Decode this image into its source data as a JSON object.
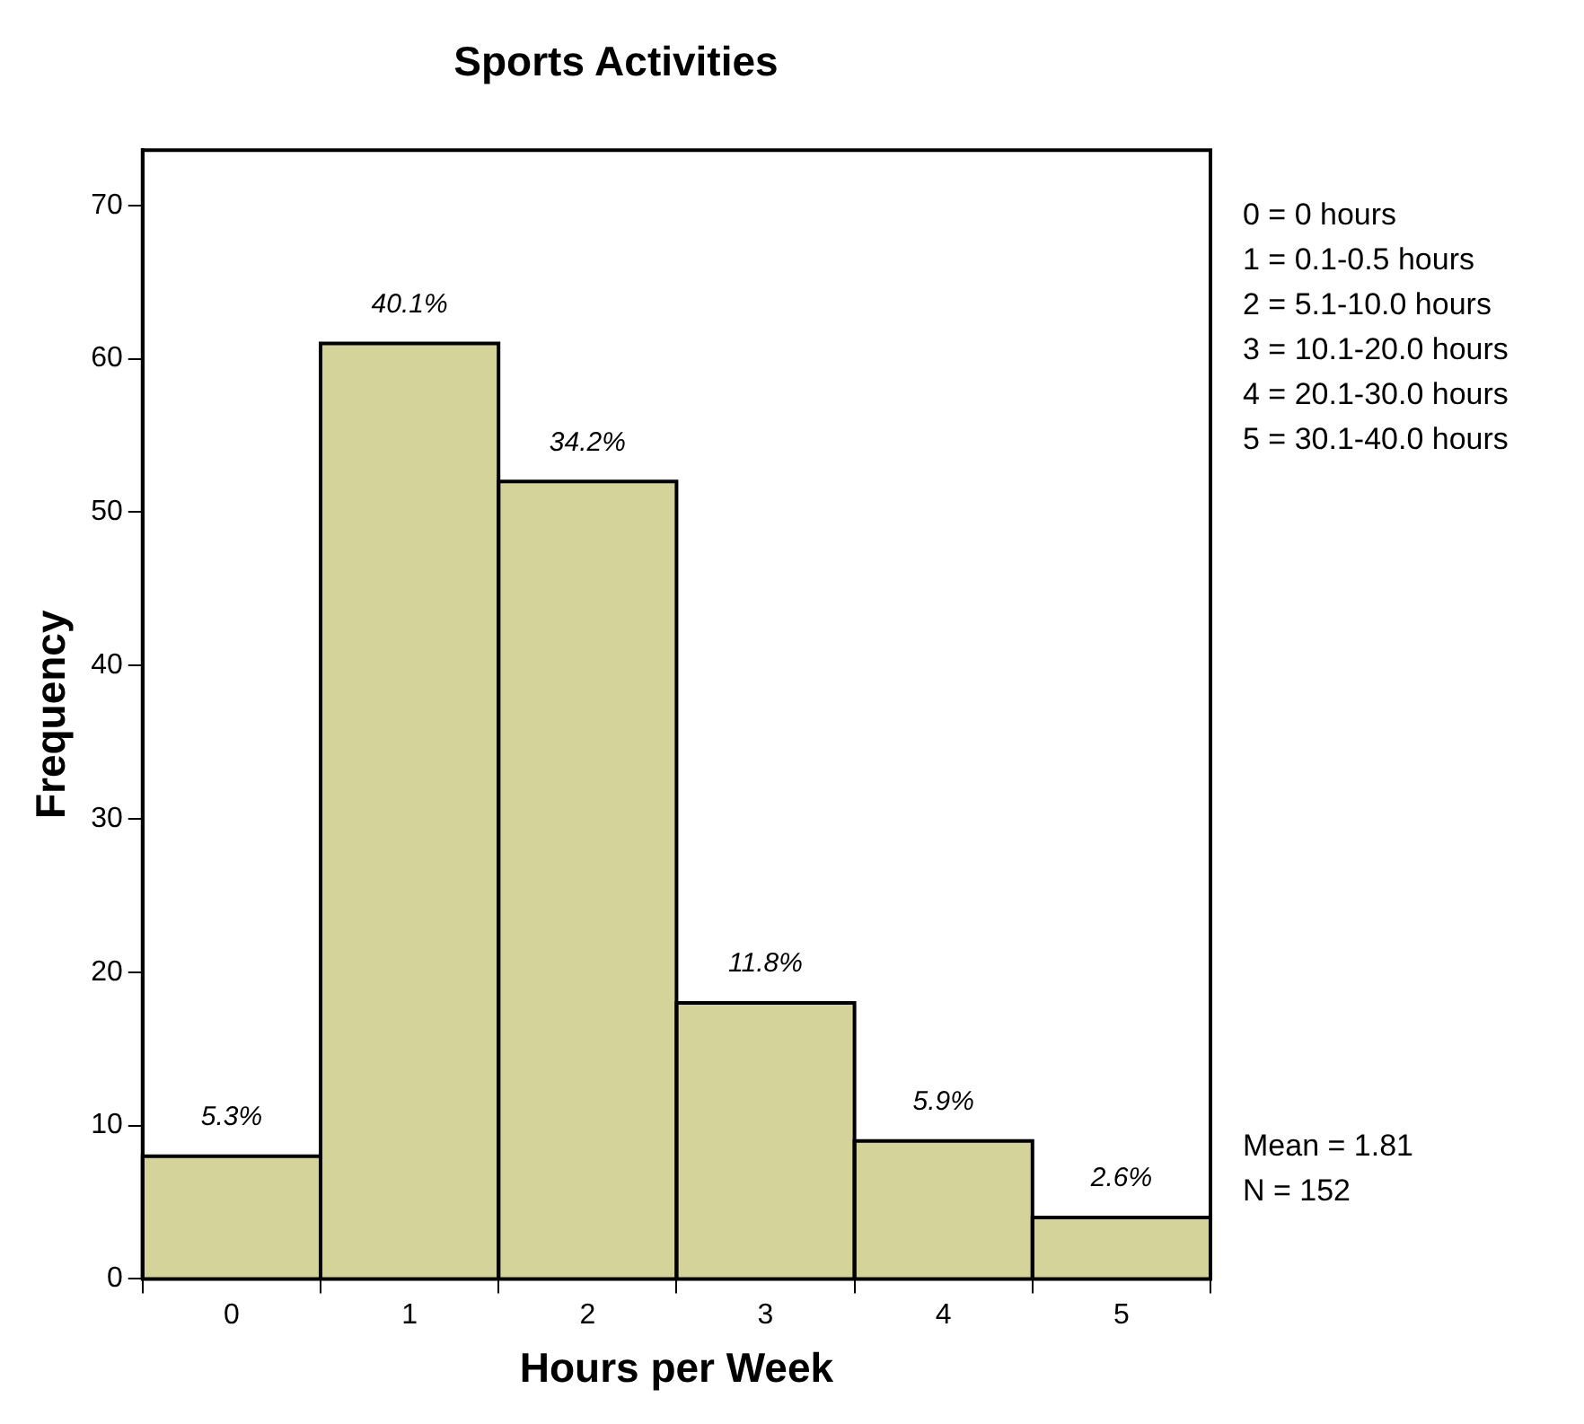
{
  "chart_data": {
    "type": "histogram",
    "title": "Sports Activities",
    "xlabel": "Hours per Week",
    "ylabel": "Frequency",
    "bins": [
      -0.5,
      0.5,
      1.5,
      2.5,
      3.5,
      4.5,
      5.5
    ],
    "values": [
      8,
      61,
      52,
      18,
      9,
      4
    ],
    "color": "#d3d39a",
    "xlim": [
      -0.5,
      5.5
    ],
    "xticks": [
      0,
      1,
      2,
      3,
      4,
      5
    ],
    "ylim": [
      0,
      73.6
    ],
    "yticks": [
      0,
      10,
      20,
      30,
      40,
      50,
      60,
      70
    ],
    "grid": false,
    "legend": false,
    "annotations": [
      {
        "text": "5.3%",
        "x": 0,
        "y": 8
      },
      {
        "text": "40.1%",
        "x": 1,
        "y": 61
      },
      {
        "text": "34.2%",
        "x": 2,
        "y": 52
      },
      {
        "text": "11.8%",
        "x": 3,
        "y": 18
      },
      {
        "text": "5.9%",
        "x": 4,
        "y": 9
      },
      {
        "text": "2.6%",
        "x": 5,
        "y": 4
      },
      "0 = 0 hours",
      "1 = 0.1-0.5 hours",
      "2 = 5.1-10.0 hours",
      "3 = 10.1-20.0 hours",
      "4 = 20.1-30.0 hours",
      "5 = 30.1-40.0 hours",
      "Mean = 1.81",
      "N = 152"
    ]
  }
}
